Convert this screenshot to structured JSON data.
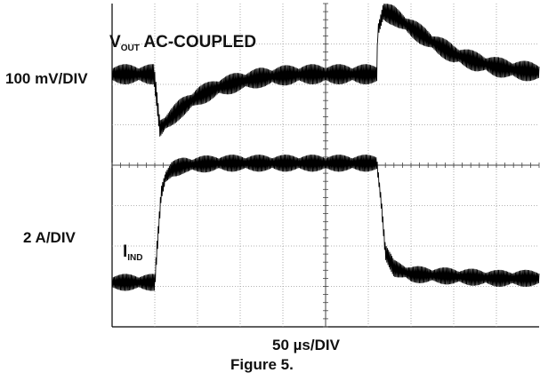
{
  "chart_data": {
    "type": "line",
    "title": "",
    "figure_caption": "Figure 5.",
    "time_scale": "50 µs/DIV",
    "x_divisions": 10,
    "grid": true,
    "series": [
      {
        "name": "VOUT AC-COUPLED",
        "label_main": "V",
        "label_sub": "OUT",
        "label_rest": " AC-COUPLED",
        "scale": "100 mV/DIV",
        "x_div": [
          0.0,
          0.98,
          1.04,
          1.12,
          1.3,
          1.6,
          2.0,
          2.5,
          3.0,
          3.5,
          4.0,
          4.5,
          5.0,
          5.5,
          6.0,
          6.2,
          6.22,
          6.35,
          6.6,
          7.0,
          7.5,
          8.0,
          8.5,
          9.0,
          9.5,
          10.0
        ],
        "y_div": [
          0.0,
          0.0,
          -0.55,
          -1.35,
          -1.15,
          -0.85,
          -0.55,
          -0.32,
          -0.18,
          -0.08,
          -0.03,
          0.0,
          0.0,
          0.0,
          0.0,
          0.0,
          1.05,
          1.55,
          1.45,
          1.15,
          0.8,
          0.5,
          0.32,
          0.18,
          0.1,
          0.05
        ],
        "ripple_div": 0.5
      },
      {
        "name": "IIND",
        "label_main": "I",
        "label_sub": "IND",
        "label_rest": "",
        "scale": "2 A/DIV",
        "x_div": [
          0.0,
          1.0,
          1.05,
          1.15,
          1.25,
          1.4,
          1.7,
          2.5,
          4.0,
          5.5,
          6.2,
          6.3,
          6.4,
          6.6,
          7.0,
          8.0,
          9.0,
          10.0
        ],
        "y_div": [
          0.0,
          0.0,
          0.8,
          2.2,
          2.6,
          2.8,
          2.9,
          2.95,
          2.95,
          2.95,
          2.95,
          2.0,
          0.75,
          0.35,
          0.2,
          0.15,
          0.1,
          0.1
        ],
        "ripple_div": 0.42
      }
    ]
  }
}
